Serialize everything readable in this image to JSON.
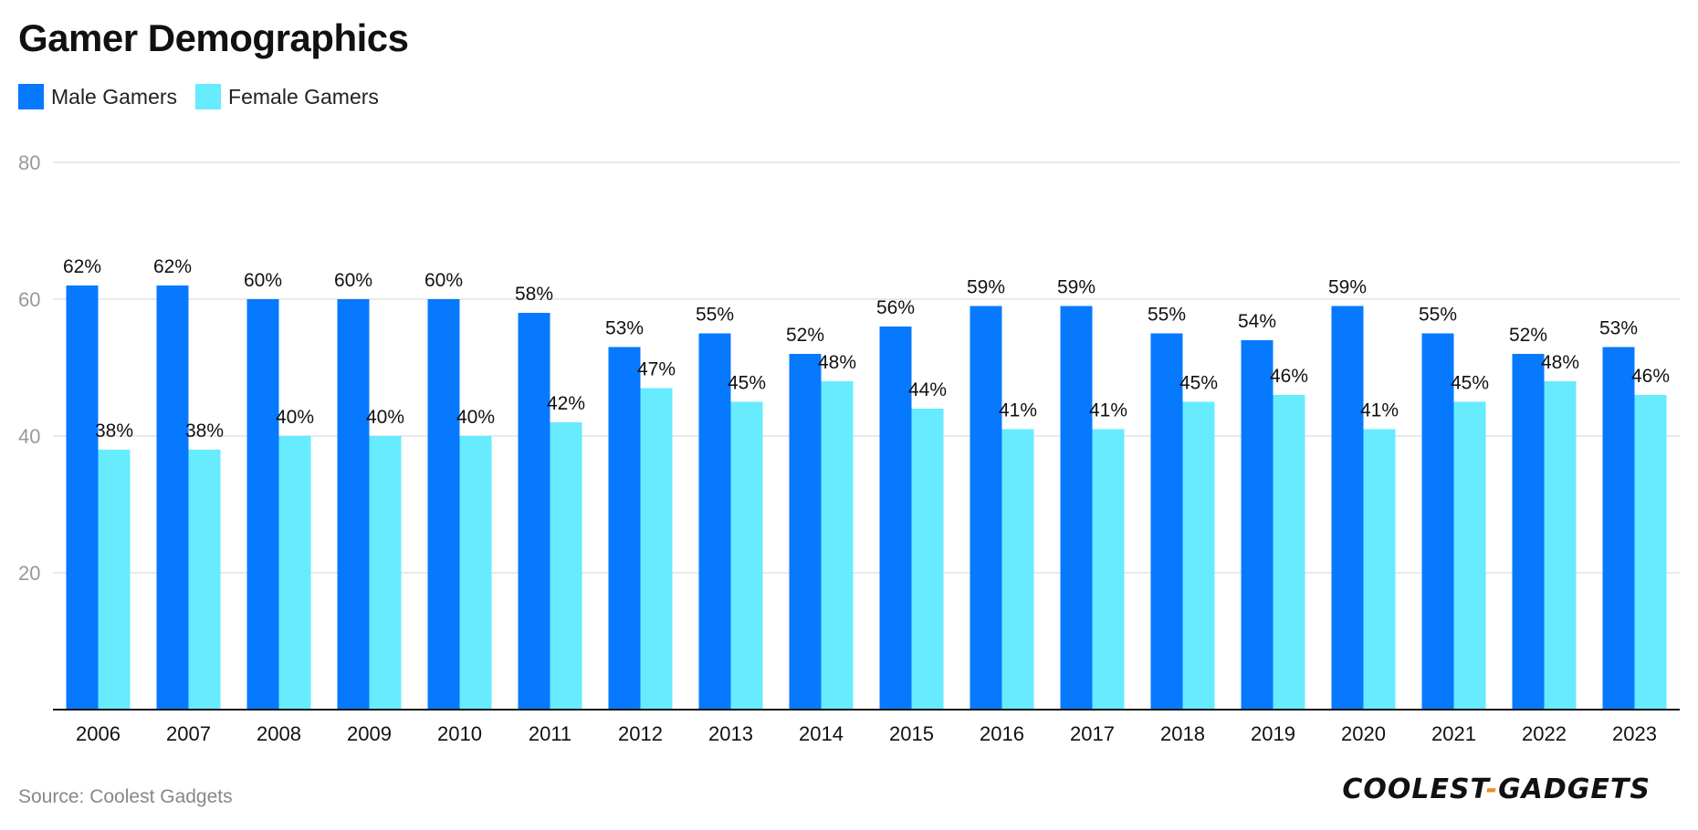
{
  "title": "Gamer Demographics",
  "source": "Source: Coolest Gadgets",
  "logo_text": "COOLEST",
  "logo_dash": "-",
  "logo_text2": "GADGETS",
  "colors": {
    "male": "#0779FF",
    "female": "#67EBFF",
    "grid": "#E2E2E2",
    "axis": "#111111",
    "tick_text": "#999999"
  },
  "chart_data": {
    "type": "bar",
    "title": "Gamer Demographics",
    "xlabel": "",
    "ylabel": "",
    "ylim": [
      0,
      80
    ],
    "yticks": [
      20,
      40,
      60,
      80
    ],
    "grid": true,
    "legend_position": "top-left",
    "value_suffix": "%",
    "categories": [
      "2006",
      "2007",
      "2008",
      "2009",
      "2010",
      "2011",
      "2012",
      "2013",
      "2014",
      "2015",
      "2016",
      "2017",
      "2018",
      "2019",
      "2020",
      "2021",
      "2022",
      "2023"
    ],
    "series": [
      {
        "name": "Male Gamers",
        "color": "#0779FF",
        "values": [
          62,
          62,
          60,
          60,
          60,
          58,
          53,
          55,
          52,
          56,
          59,
          59,
          55,
          54,
          59,
          55,
          52,
          53
        ]
      },
      {
        "name": "Female Gamers",
        "color": "#67EBFF",
        "values": [
          38,
          38,
          40,
          40,
          40,
          42,
          47,
          45,
          48,
          44,
          41,
          41,
          45,
          46,
          41,
          45,
          48,
          46
        ]
      }
    ]
  }
}
